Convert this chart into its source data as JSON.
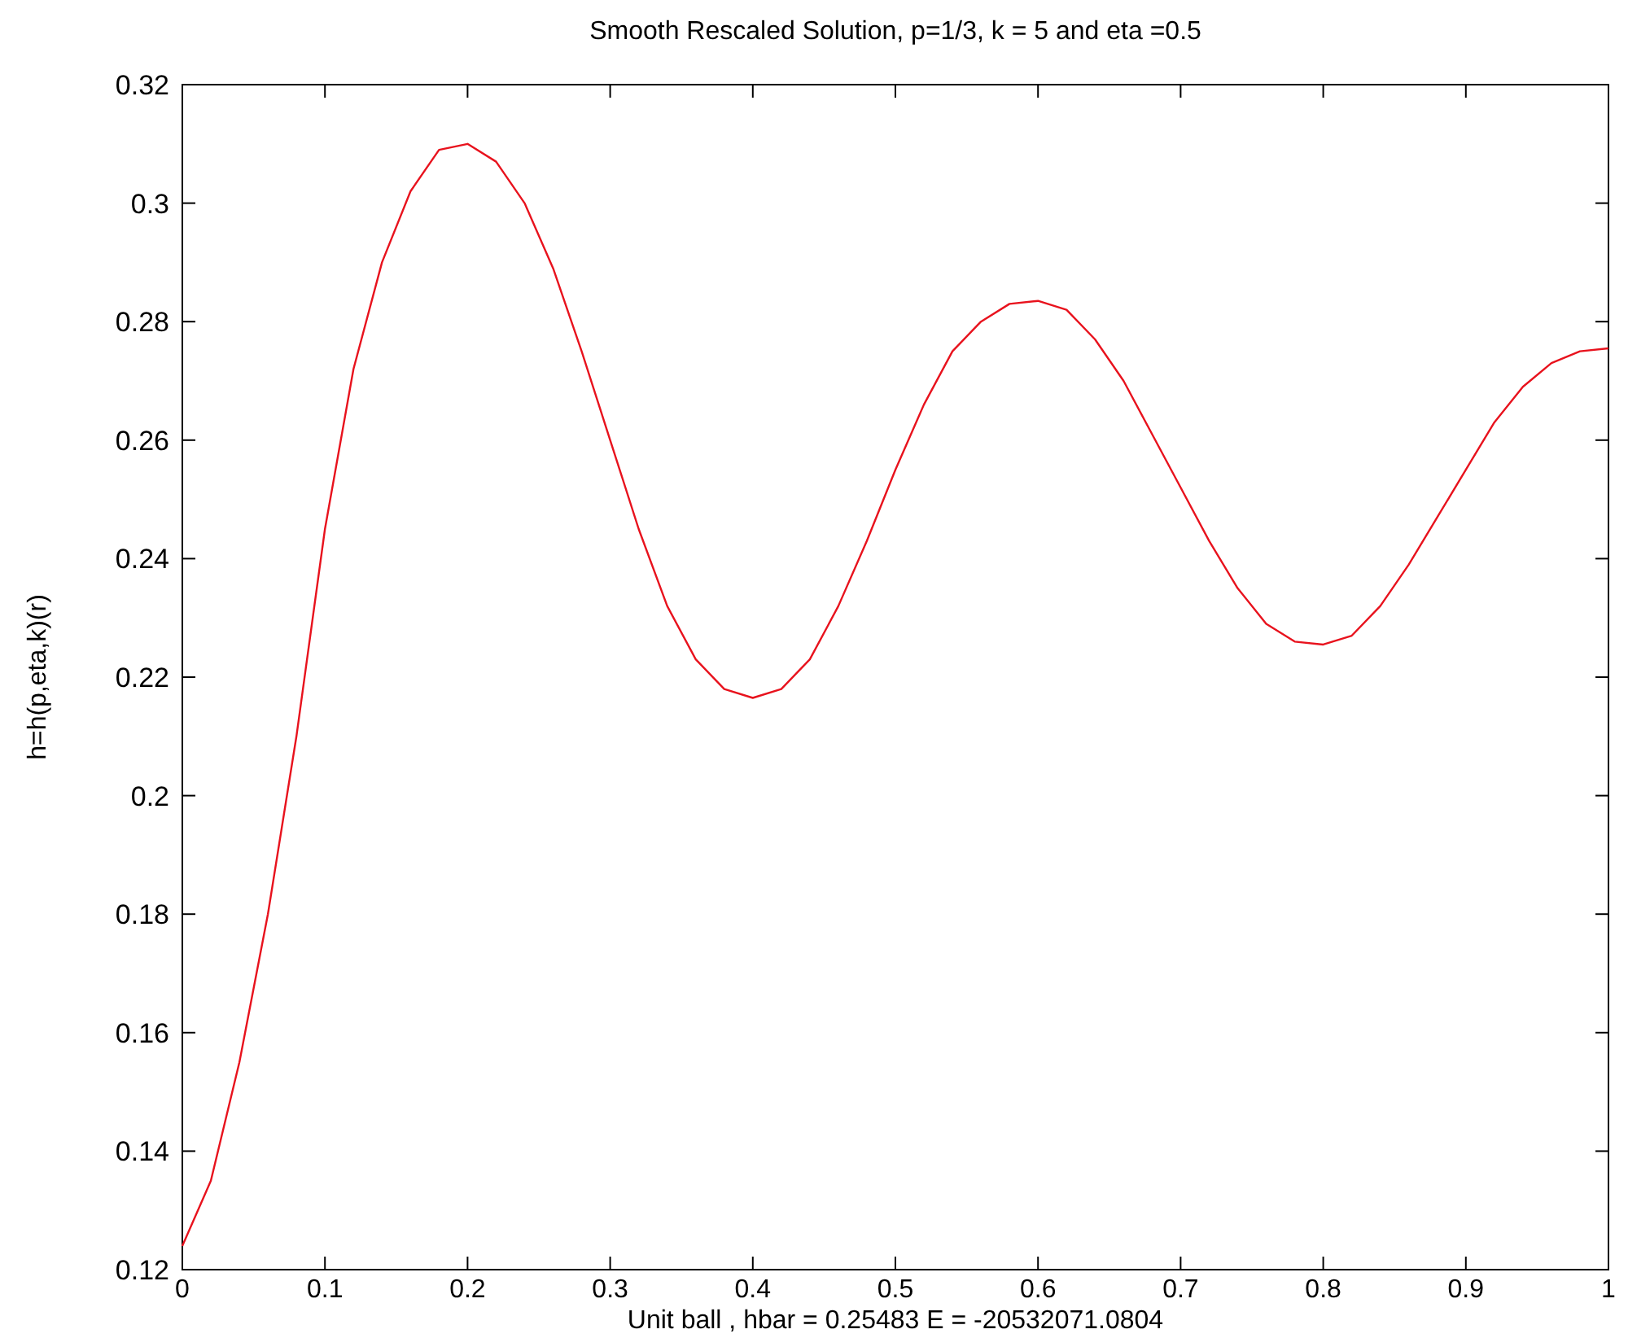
{
  "chart_data": {
    "type": "line",
    "title": "Smooth Rescaled Solution,  p=1/3, k = 5  and    eta =0.5",
    "xlabel": "Unit ball , hbar = 0.25483    E = -20532071.0804",
    "ylabel": "h=h(p,eta,k)(r)",
    "x": [
      0,
      0.02,
      0.04,
      0.06,
      0.08,
      0.1,
      0.12,
      0.14,
      0.16,
      0.18,
      0.2,
      0.22,
      0.24,
      0.26,
      0.28,
      0.3,
      0.32,
      0.34,
      0.36,
      0.38,
      0.4,
      0.42,
      0.44,
      0.46,
      0.48,
      0.5,
      0.52,
      0.54,
      0.56,
      0.58,
      0.6,
      0.62,
      0.64,
      0.66,
      0.68,
      0.7,
      0.72,
      0.74,
      0.76,
      0.78,
      0.8,
      0.82,
      0.84,
      0.86,
      0.88,
      0.9,
      0.92,
      0.94,
      0.96,
      0.98,
      1
    ],
    "series": [
      {
        "color": "#e8121d",
        "values": [
          0.124,
          0.135,
          0.155,
          0.18,
          0.21,
          0.245,
          0.272,
          0.29,
          0.302,
          0.309,
          0.31,
          0.307,
          0.3,
          0.289,
          0.275,
          0.26,
          0.245,
          0.232,
          0.223,
          0.218,
          0.2165,
          0.218,
          0.223,
          0.232,
          0.243,
          0.255,
          0.266,
          0.275,
          0.28,
          0.283,
          0.2835,
          0.282,
          0.277,
          0.27,
          0.261,
          0.252,
          0.243,
          0.235,
          0.229,
          0.226,
          0.2255,
          0.227,
          0.232,
          0.239,
          0.247,
          0.255,
          0.263,
          0.269,
          0.273,
          0.275,
          0.2755
        ]
      }
    ],
    "xlim": [
      0,
      1
    ],
    "xticks": [
      0,
      0.1,
      0.2,
      0.3,
      0.4,
      0.5,
      0.6,
      0.7,
      0.8,
      0.9,
      1
    ],
    "ylim": [
      0.12,
      0.32
    ],
    "yticks": [
      0.12,
      0.14,
      0.16,
      0.18,
      0.2,
      0.22,
      0.24,
      0.26,
      0.28,
      0.3,
      0.32
    ],
    "grid": false,
    "marker": "none",
    "line_style": "solid"
  }
}
